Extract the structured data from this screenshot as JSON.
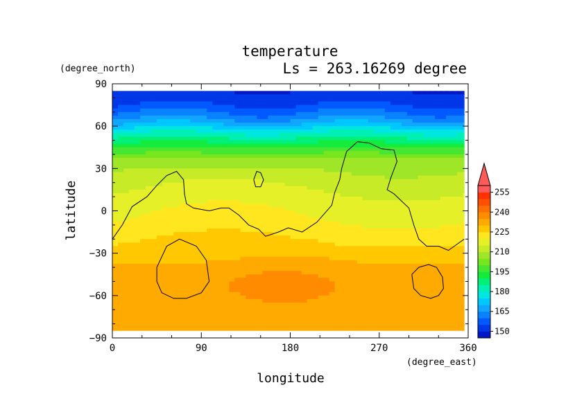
{
  "chart_data": {
    "type": "heatmap",
    "title": "temperature",
    "subtitle": "Ls = 263.16269 degree",
    "xlabel": "longitude",
    "ylabel": "latitude",
    "xunit": "(degree_east)",
    "yunit": "(degree_north)",
    "xlim": [
      0,
      360
    ],
    "ylim": [
      -90,
      90
    ],
    "xticks": [
      "0",
      "90",
      "180",
      "270",
      "360"
    ],
    "yticks": [
      "90",
      "60",
      "30",
      "0",
      "−30",
      "−60",
      "−90"
    ],
    "data_extent": {
      "lon": [
        0,
        356.25
      ],
      "lat": [
        -85,
        85
      ]
    },
    "colorbar": {
      "levels": [
        145,
        150,
        155,
        160,
        165,
        170,
        175,
        180,
        185,
        190,
        195,
        200,
        205,
        210,
        215,
        220,
        225,
        230,
        235,
        240,
        245,
        250,
        255,
        260
      ],
      "labels": [
        "150",
        "165",
        "180",
        "195",
        "210",
        "225",
        "240",
        "255"
      ],
      "colors": [
        "#0018c8",
        "#0037e6",
        "#005aff",
        "#0a82ff",
        "#10a6ff",
        "#00c8ff",
        "#00e6e0",
        "#00f0b4",
        "#00f078",
        "#14eb3c",
        "#46e632",
        "#78e61e",
        "#a0e628",
        "#c8eb28",
        "#e6f028",
        "#ffe61e",
        "#ffc800",
        "#ffaa00",
        "#ff8c00",
        "#ff6e00",
        "#ff5000",
        "#ff3200",
        "#ff5a5a"
      ],
      "extend_max": true
    },
    "temperature_profile": {
      "lat": [
        85,
        75,
        65,
        55,
        45,
        35,
        25,
        15,
        5,
        -5,
        -15,
        -25,
        -35,
        -45,
        -55,
        -65,
        -75,
        -85
      ],
      "value": [
        150,
        155,
        165,
        180,
        195,
        208,
        212,
        215,
        218,
        220,
        223,
        226,
        229,
        232,
        233,
        232,
        231,
        230
      ]
    },
    "contour_level": "unlabeled",
    "contours": [
      [
        [
          0,
          -20
        ],
        [
          10,
          -10
        ],
        [
          20,
          3
        ],
        [
          35,
          10
        ],
        [
          45,
          18
        ],
        [
          55,
          25
        ],
        [
          65,
          28
        ],
        [
          72,
          22
        ],
        [
          73,
          12
        ],
        [
          75,
          5
        ],
        [
          82,
          2
        ],
        [
          98,
          0
        ],
        [
          110,
          2
        ],
        [
          118,
          2
        ],
        [
          128,
          -3
        ],
        [
          138,
          -10
        ],
        [
          148,
          -13
        ],
        [
          155,
          -18
        ],
        [
          168,
          -15
        ],
        [
          178,
          -12
        ],
        [
          192,
          -15
        ],
        [
          207,
          -8
        ],
        [
          222,
          4
        ],
        [
          225,
          13
        ],
        [
          230,
          22
        ],
        [
          232,
          30
        ],
        [
          237,
          42
        ],
        [
          248,
          49
        ],
        [
          260,
          48
        ],
        [
          272,
          44
        ],
        [
          285,
          43
        ],
        [
          288,
          35
        ],
        [
          282,
          24
        ],
        [
          278,
          15
        ],
        [
          285,
          12
        ],
        [
          300,
          2
        ],
        [
          305,
          -10
        ],
        [
          310,
          -20
        ],
        [
          318,
          -25
        ],
        [
          330,
          -25
        ],
        [
          340,
          -28
        ],
        [
          350,
          -23
        ],
        [
          356,
          -20
        ]
      ],
      [
        [
          143,
          22
        ],
        [
          146,
          28
        ],
        [
          150,
          27
        ],
        [
          153,
          22
        ],
        [
          150,
          17
        ],
        [
          145,
          17
        ],
        [
          143,
          22
        ]
      ],
      [
        [
          45,
          -40
        ],
        [
          55,
          -25
        ],
        [
          68,
          -20
        ],
        [
          85,
          -25
        ],
        [
          95,
          -35
        ],
        [
          98,
          -50
        ],
        [
          90,
          -58
        ],
        [
          75,
          -62
        ],
        [
          62,
          -62
        ],
        [
          50,
          -58
        ],
        [
          45,
          -50
        ],
        [
          45,
          -40
        ]
      ],
      [
        [
          303,
          -45
        ],
        [
          310,
          -40
        ],
        [
          320,
          -38
        ],
        [
          328,
          -40
        ],
        [
          334,
          -47
        ],
        [
          335,
          -55
        ],
        [
          330,
          -60
        ],
        [
          322,
          -62
        ],
        [
          312,
          -60
        ],
        [
          305,
          -55
        ],
        [
          303,
          -45
        ]
      ]
    ]
  }
}
